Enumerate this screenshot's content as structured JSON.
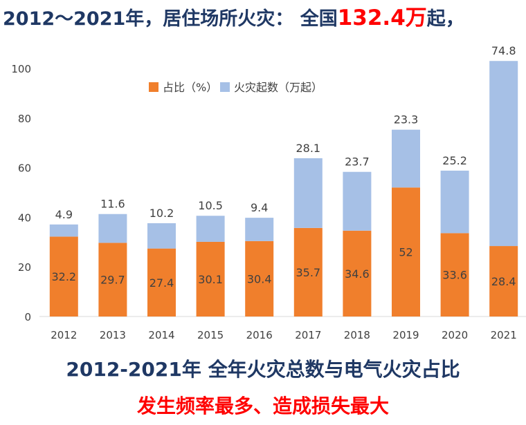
{
  "headline": {
    "prefix": "2012～2021年，居住场所火灾：  全国",
    "highlight": "132.4万",
    "suffix": "起，"
  },
  "captions": {
    "line1": "2012-2021年  全年火灾总数与电气火灾占比",
    "line2": "发生频率最多、造成损失最大"
  },
  "colors": {
    "bottom": "#f07f2c",
    "top": "#a6c0e6",
    "axis": "#d9d9d9",
    "label": "#404040"
  },
  "chart_data": {
    "type": "bar",
    "stacked": true,
    "categories": [
      "2012",
      "2013",
      "2014",
      "2015",
      "2016",
      "2017",
      "2018",
      "2019",
      "2020",
      "2021"
    ],
    "series": [
      {
        "name": "占比（%）",
        "values": [
          32.2,
          29.7,
          27.4,
          30.1,
          30.4,
          35.7,
          34.6,
          52,
          33.6,
          28.4
        ]
      },
      {
        "name": "火灾起数（万起）",
        "values": [
          4.9,
          11.6,
          10.2,
          10.5,
          9.4,
          28.1,
          23.7,
          23.3,
          25.2,
          74.8
        ]
      }
    ],
    "data_labels": {
      "bottom": [
        "32.2",
        "29.7",
        "27.4",
        "30.1",
        "30.4",
        "35.7",
        "34.6",
        "52",
        "33.6",
        "28.4"
      ],
      "top": [
        "4.9",
        "11.6",
        "10.2",
        "10.5",
        "9.4",
        "28.1",
        "23.7",
        "23.3",
        "25.2",
        "74.8"
      ]
    },
    "y_ticks": [
      "0",
      "20",
      "40",
      "60",
      "80",
      "100"
    ],
    "ylim": [
      0,
      100
    ],
    "legend": "top-left",
    "grid": false
  }
}
